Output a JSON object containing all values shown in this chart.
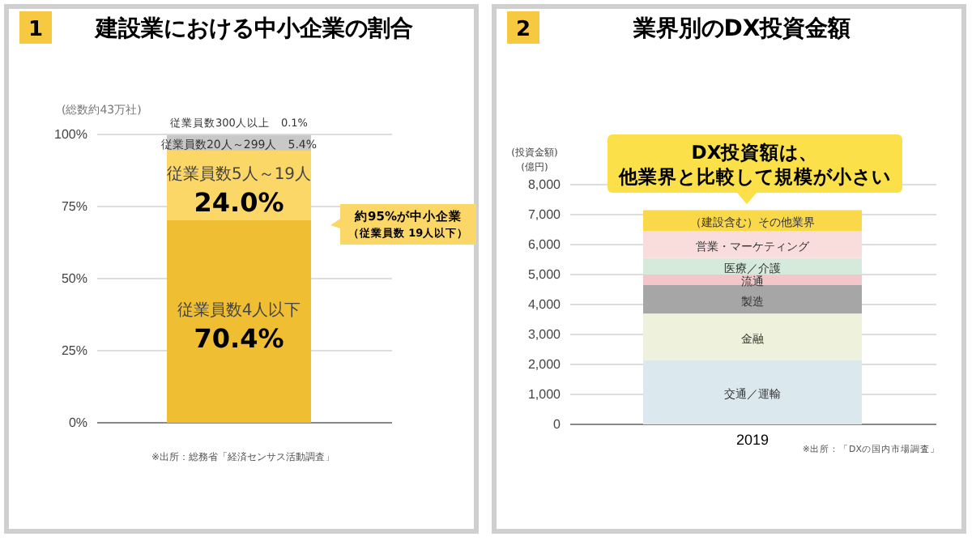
{
  "chart_data": [
    {
      "type": "bar",
      "title": "建設業における中小企業の割合",
      "categories": [
        null
      ],
      "stacked": true,
      "ylim": [
        0,
        100
      ],
      "yticks": [
        {
          "value": 0,
          "label": "0%"
        },
        {
          "value": 25,
          "label": "25%"
        },
        {
          "value": 50,
          "label": "50%"
        },
        {
          "value": 75,
          "label": "75%"
        },
        {
          "value": 100,
          "label": "100%"
        }
      ],
      "grid": "y",
      "series": [
        {
          "name": "従業員数4人以下",
          "color": "#f0be32",
          "values": [
            70.4
          ],
          "value_labels": [
            "70.4%"
          ]
        },
        {
          "name": "従業員数5人～19人",
          "color": "#fbd767",
          "values": [
            24.0
          ],
          "value_labels": [
            "24.0%"
          ]
        },
        {
          "name": "従業員数20人～299人",
          "color": "#c8c8c8",
          "values": [
            5.4
          ],
          "value_labels": [
            "5.4%"
          ]
        },
        {
          "name": "従業員数300人以上",
          "color": "#e6e6e6",
          "values": [
            0.1
          ],
          "value_labels": [
            "0.1%"
          ]
        }
      ],
      "annotations": [
        "1",
        "(総数約43万社)",
        "約95%が中小企業",
        "（従業員数 19人以下）",
        "※出所：総務省「経済センサス活動調査」"
      ]
    },
    {
      "type": "bar",
      "title": "業界別のDX投資金額",
      "ylabel": "(投資金額)",
      "categories": [
        "2019"
      ],
      "stacked": true,
      "ylim": [
        0,
        8000
      ],
      "yticks": [
        0,
        {
          "value": 1000,
          "label": "1,000"
        },
        {
          "value": 2000,
          "label": "2,000"
        },
        {
          "value": 3000,
          "label": "3,000"
        },
        {
          "value": 4000,
          "label": "4,000"
        },
        {
          "value": 5000,
          "label": "5,000"
        },
        {
          "value": 6000,
          "label": "6,000"
        },
        {
          "value": 7000,
          "label": "7,000"
        },
        {
          "value": 8000,
          "label": "8,000"
        }
      ],
      "grid": "y",
      "series": [
        {
          "name": "交通／運輸",
          "color": "#dbe8ee",
          "values": [
            2150
          ]
        },
        {
          "name": "金融",
          "color": "#eef2dc",
          "values": [
            1550
          ]
        },
        {
          "name": "製造",
          "color": "#a6a6a6",
          "values": [
            950
          ]
        },
        {
          "name": "流通",
          "color": "#f3c6c9",
          "values": [
            350
          ]
        },
        {
          "name": "医療／介護",
          "color": "#d6eadb",
          "values": [
            550
          ]
        },
        {
          "name": "営業・マーケティング",
          "color": "#f9dcdc",
          "values": [
            900
          ]
        },
        {
          "name": "（建設含む）その他業界",
          "color": "#f9d84a",
          "values": [
            700
          ]
        }
      ],
      "annotations": [
        "2",
        "DX投資額は、",
        "他業界と比較して規模が小さい",
        "※出所：「DXの国内市場調査」",
        "(億円)"
      ]
    }
  ]
}
